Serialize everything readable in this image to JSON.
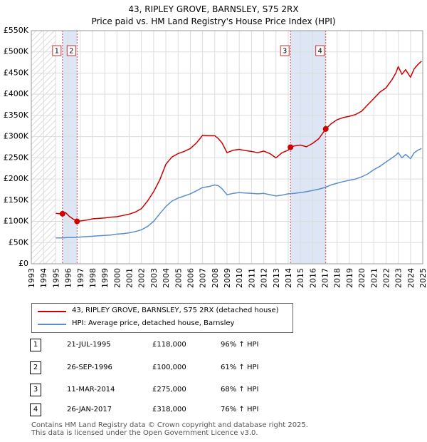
{
  "title": {
    "line1": "43, RIPLEY GROVE, BARNSLEY, S75 2RX",
    "line2": "Price paid vs. HM Land Registry's House Price Index (HPI)"
  },
  "chart_data": {
    "type": "line",
    "xlim": [
      1993,
      2025
    ],
    "ylim": [
      0,
      550000
    ],
    "y_ticks": [
      0,
      50000,
      100000,
      150000,
      200000,
      250000,
      300000,
      350000,
      400000,
      450000,
      500000,
      550000
    ],
    "y_tick_labels": [
      "£0",
      "£50K",
      "£100K",
      "£150K",
      "£200K",
      "£250K",
      "£300K",
      "£350K",
      "£400K",
      "£450K",
      "£500K",
      "£550K"
    ],
    "x_ticks": [
      1993,
      1994,
      1995,
      1996,
      1997,
      1998,
      1999,
      2000,
      2001,
      2002,
      2003,
      2004,
      2005,
      2006,
      2007,
      2008,
      2009,
      2010,
      2011,
      2012,
      2013,
      2014,
      2015,
      2016,
      2017,
      2018,
      2019,
      2020,
      2021,
      2022,
      2023,
      2024,
      2025
    ],
    "x_tick_labels": [
      "1993",
      "1994",
      "1995",
      "1996",
      "1997",
      "1998",
      "1999",
      "2000",
      "2001",
      "2002",
      "2003",
      "2004",
      "2005",
      "2006",
      "2007",
      "2008",
      "2009",
      "2010",
      "2011",
      "2012",
      "2013",
      "2014",
      "2015",
      "2016",
      "2017",
      "2018",
      "2019",
      "2020",
      "2021",
      "2022",
      "2023",
      "2024",
      "2025"
    ],
    "hatched_range": [
      1993,
      1995.0
    ],
    "shaded_ranges": [
      [
        1995.55,
        1996.74
      ],
      [
        2014.19,
        2017.07
      ]
    ],
    "colors": {
      "property": "#cc0000",
      "hpi": "#5b8ec8",
      "shade": "#dce6f5",
      "grid": "#dddddd"
    },
    "series": [
      {
        "name": "43, RIPLEY GROVE, BARNSLEY, S75 2RX (detached house)",
        "color": "#cc0000",
        "x": [
          1995.0,
          1995.25,
          1995.55,
          1995.8,
          1996.1,
          1996.4,
          1996.74,
          1997.0,
          1997.5,
          1998.0,
          1998.5,
          1999.0,
          1999.5,
          2000.0,
          2000.5,
          2001.0,
          2001.5,
          2002.0,
          2002.5,
          2003.0,
          2003.5,
          2004.0,
          2004.5,
          2005.0,
          2005.5,
          2006.0,
          2006.5,
          2007.0,
          2007.5,
          2008.0,
          2008.3,
          2008.6,
          2009.0,
          2009.5,
          2010.0,
          2010.5,
          2011.0,
          2011.5,
          2012.0,
          2012.5,
          2013.0,
          2013.5,
          2014.0,
          2014.19,
          2014.5,
          2015.0,
          2015.5,
          2016.0,
          2016.5,
          2017.07,
          2017.5,
          2018.0,
          2018.5,
          2019.0,
          2019.5,
          2020.0,
          2020.5,
          2021.0,
          2021.5,
          2022.0,
          2022.5,
          2022.8,
          2023.0,
          2023.3,
          2023.6,
          2024.0,
          2024.3,
          2024.6,
          2024.9
        ],
        "y": [
          119000,
          118000,
          118000,
          121000,
          112000,
          106000,
          100000,
          101000,
          103000,
          106000,
          107000,
          108000,
          110000,
          111000,
          114000,
          117000,
          122000,
          130000,
          148000,
          170000,
          198000,
          235000,
          252000,
          260000,
          265000,
          272000,
          285000,
          303000,
          302000,
          302000,
          295000,
          285000,
          262000,
          268000,
          270000,
          267000,
          265000,
          262000,
          266000,
          260000,
          250000,
          262000,
          268000,
          275000,
          278000,
          280000,
          276000,
          284000,
          295000,
          318000,
          330000,
          340000,
          345000,
          348000,
          352000,
          360000,
          375000,
          390000,
          405000,
          415000,
          435000,
          450000,
          465000,
          447000,
          458000,
          440000,
          460000,
          470000,
          478000
        ]
      },
      {
        "name": "HPI: Average price, detached house, Barnsley",
        "color": "#5b8ec8",
        "x": [
          1995.0,
          1995.5,
          1996.0,
          1996.5,
          1997.0,
          1997.5,
          1998.0,
          1998.5,
          1999.0,
          1999.5,
          2000.0,
          2000.5,
          2001.0,
          2001.5,
          2002.0,
          2002.5,
          2003.0,
          2003.5,
          2004.0,
          2004.5,
          2005.0,
          2005.5,
          2006.0,
          2006.5,
          2007.0,
          2007.5,
          2008.0,
          2008.3,
          2008.6,
          2009.0,
          2009.5,
          2010.0,
          2010.5,
          2011.0,
          2011.5,
          2012.0,
          2012.5,
          2013.0,
          2013.5,
          2014.0,
          2014.5,
          2015.0,
          2015.5,
          2016.0,
          2016.5,
          2017.0,
          2017.5,
          2018.0,
          2018.5,
          2019.0,
          2019.5,
          2020.0,
          2020.5,
          2021.0,
          2021.5,
          2022.0,
          2022.5,
          2022.8,
          2023.0,
          2023.3,
          2023.6,
          2024.0,
          2024.3,
          2024.6,
          2024.9
        ],
        "y": [
          61000,
          61000,
          62000,
          62000,
          63000,
          64000,
          65000,
          66000,
          67000,
          68000,
          70000,
          71000,
          73000,
          76000,
          80000,
          88000,
          100000,
          118000,
          135000,
          148000,
          155000,
          160000,
          165000,
          172000,
          180000,
          182000,
          186000,
          184000,
          177000,
          163000,
          166000,
          168000,
          167000,
          166000,
          165000,
          166000,
          163000,
          160000,
          162000,
          165000,
          166000,
          168000,
          170000,
          173000,
          176000,
          180000,
          186000,
          190000,
          194000,
          197000,
          200000,
          205000,
          212000,
          222000,
          230000,
          240000,
          250000,
          256000,
          262000,
          250000,
          258000,
          248000,
          262000,
          268000,
          272000
        ]
      }
    ],
    "sales": [
      {
        "id": "1",
        "x": 1995.55,
        "y": 118000
      },
      {
        "id": "2",
        "x": 1996.74,
        "y": 100000
      },
      {
        "id": "3",
        "x": 2014.19,
        "y": 275000
      },
      {
        "id": "4",
        "x": 2017.07,
        "y": 318000
      }
    ],
    "legend": {
      "property": "43, RIPLEY GROVE, BARNSLEY, S75 2RX (detached house)",
      "hpi": "HPI: Average price, detached house, Barnsley"
    }
  },
  "sales_table": [
    {
      "num": "1",
      "date": "21-JUL-1995",
      "price": "£118,000",
      "hpi": "96% ↑ HPI"
    },
    {
      "num": "2",
      "date": "26-SEP-1996",
      "price": "£100,000",
      "hpi": "61% ↑ HPI"
    },
    {
      "num": "3",
      "date": "11-MAR-2014",
      "price": "£275,000",
      "hpi": "68% ↑ HPI"
    },
    {
      "num": "4",
      "date": "26-JAN-2017",
      "price": "£318,000",
      "hpi": "76% ↑ HPI"
    }
  ],
  "footer": {
    "line1": "Contains HM Land Registry data © Crown copyright and database right 2025.",
    "line2": "This data is licensed under the Open Government Licence v3.0."
  }
}
